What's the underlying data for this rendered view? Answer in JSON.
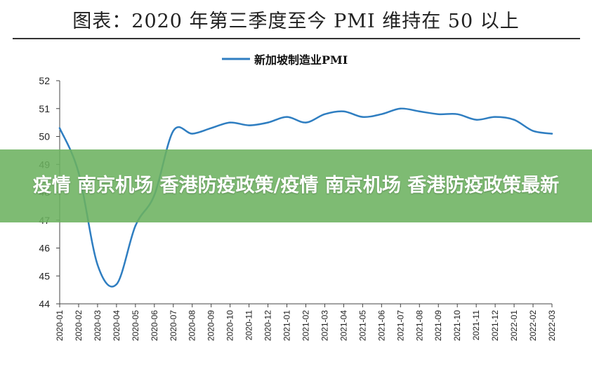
{
  "page": {
    "title": "图表：2020 年第三季度至今 PMI 维持在 50 以上",
    "overlay_text": "疫情 南京机场 香港防疫政策/疫情 南京机场 香港防疫政策最新"
  },
  "colors": {
    "line": "#2f7ec1",
    "axis": "#444444",
    "banner": "#6cb260"
  },
  "chart_data": {
    "type": "line",
    "categories": [
      "2020-01",
      "2020-02",
      "2020-03",
      "2020-04",
      "2020-05",
      "2020-06",
      "2020-07",
      "2020-08",
      "2020-09",
      "2020-10",
      "2020-11",
      "2020-12",
      "2021-01",
      "2021-02",
      "2021-03",
      "2021-04",
      "2021-05",
      "2021-06",
      "2021-07",
      "2021-08",
      "2021-09",
      "2021-10",
      "2021-11",
      "2021-12",
      "2022-01",
      "2022-02",
      "2022-03"
    ],
    "series": [
      {
        "name": "新加坡制造业PMI",
        "values": [
          50.3,
          48.7,
          45.4,
          44.7,
          46.8,
          47.9,
          50.2,
          50.1,
          50.3,
          50.5,
          50.4,
          50.5,
          50.7,
          50.5,
          50.8,
          50.9,
          50.7,
          50.8,
          51.0,
          50.9,
          50.8,
          50.8,
          50.6,
          50.7,
          50.6,
          50.2,
          50.1
        ]
      }
    ],
    "ylim": [
      44,
      52
    ],
    "yticks": [
      "44",
      "45",
      "46",
      "47",
      "48",
      "49",
      "50",
      "51",
      "52"
    ],
    "legend_position": "top-center",
    "grid": false,
    "xlabel": "",
    "ylabel": ""
  }
}
